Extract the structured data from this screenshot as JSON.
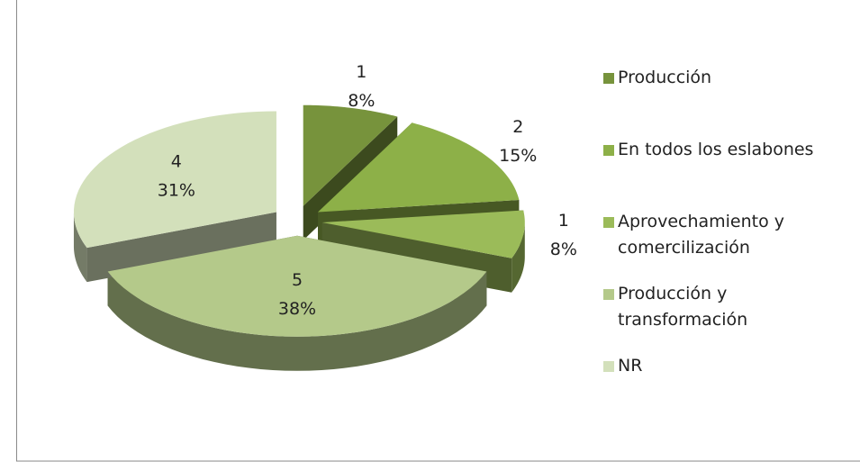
{
  "chart_data": {
    "type": "pie3d",
    "categories": [
      "Producción",
      "En todos los eslabones",
      "Aprovechamiento y\ncomercilización",
      "Producción y\ntransformación",
      "NR"
    ],
    "values": [
      1,
      2,
      1,
      5,
      4
    ],
    "percentage_labels": [
      "8%",
      "15%",
      "8%",
      "38%",
      "31%"
    ],
    "colors": [
      "#77933c",
      "#8db048",
      "#9bbb59",
      "#b4c98a",
      "#d3e0bb"
    ],
    "legend": "right"
  }
}
